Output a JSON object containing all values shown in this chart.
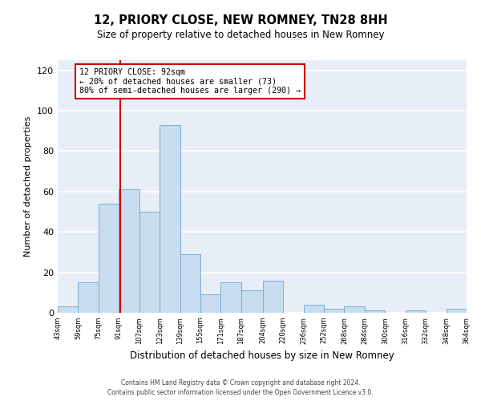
{
  "title": "12, PRIORY CLOSE, NEW ROMNEY, TN28 8HH",
  "subtitle": "Size of property relative to detached houses in New Romney",
  "xlabel": "Distribution of detached houses by size in New Romney",
  "ylabel": "Number of detached properties",
  "bin_edges": [
    43,
    59,
    75,
    91,
    107,
    123,
    139,
    155,
    171,
    187,
    204,
    220,
    236,
    252,
    268,
    284,
    300,
    316,
    332,
    348,
    364
  ],
  "bar_heights": [
    3,
    15,
    54,
    61,
    50,
    93,
    29,
    9,
    15,
    11,
    16,
    0,
    4,
    2,
    3,
    1,
    0,
    1,
    0,
    2
  ],
  "bar_color": "#c8ddf0",
  "bar_edge_color": "#7aafd4",
  "background_color": "#e8eef8",
  "grid_color": "#ffffff",
  "vline_x": 92,
  "vline_color": "#cc0000",
  "annotation_line1": "12 PRIORY CLOSE: 92sqm",
  "annotation_line2": "← 20% of detached houses are smaller (73)",
  "annotation_line3": "80% of semi-detached houses are larger (290) →",
  "annotation_box_color": "#cc0000",
  "ylim": [
    0,
    125
  ],
  "yticks": [
    0,
    20,
    40,
    60,
    80,
    100,
    120
  ],
  "tick_labels": [
    "43sqm",
    "59sqm",
    "75sqm",
    "91sqm",
    "107sqm",
    "123sqm",
    "139sqm",
    "155sqm",
    "171sqm",
    "187sqm",
    "204sqm",
    "220sqm",
    "236sqm",
    "252sqm",
    "268sqm",
    "284sqm",
    "300sqm",
    "316sqm",
    "332sqm",
    "348sqm",
    "364sqm"
  ],
  "footnote1": "Contains HM Land Registry data © Crown copyright and database right 2024.",
  "footnote2": "Contains public sector information licensed under the Open Government Licence v3.0."
}
